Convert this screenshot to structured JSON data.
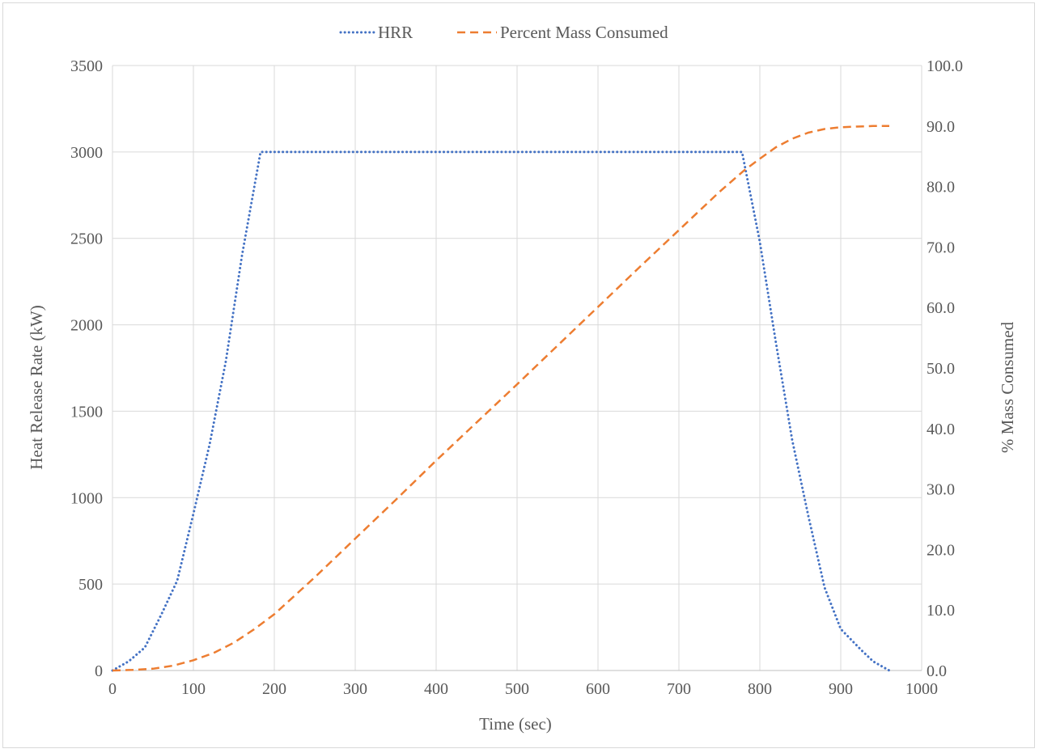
{
  "chart_data": {
    "type": "line",
    "title": "",
    "xlabel": "Time (sec)",
    "ylabel": "Heat Release Rate (kW)",
    "y2label": "% Mass Consumed",
    "xlim": [
      0,
      1000
    ],
    "ylim": [
      0,
      3500
    ],
    "y2lim": [
      0,
      100
    ],
    "x_ticks": [
      "0",
      "100",
      "200",
      "300",
      "400",
      "500",
      "600",
      "700",
      "800",
      "900",
      "1000"
    ],
    "y_ticks": [
      "0",
      "500",
      "1000",
      "1500",
      "2000",
      "2500",
      "3000",
      "3500"
    ],
    "y2_ticks": [
      "0.0",
      "10.0",
      "20.0",
      "30.0",
      "40.0",
      "50.0",
      "60.0",
      "70.0",
      "80.0",
      "90.0",
      "100.0"
    ],
    "grid": true,
    "legend_position": "top-center",
    "series": [
      {
        "name": "HRR",
        "axis": "left",
        "style": "dotted",
        "color": "#4472c4",
        "x": [
          0,
          20,
          40,
          60,
          80,
          100,
          120,
          140,
          160,
          183,
          200,
          300,
          400,
          500,
          600,
          700,
          778,
          800,
          820,
          840,
          860,
          880,
          900,
          925,
          940,
          960
        ],
        "y": [
          0,
          53,
          133,
          320,
          520,
          907,
          1307,
          1787,
          2400,
          3000,
          3000,
          3000,
          3000,
          3000,
          3000,
          3000,
          3000,
          2480,
          1893,
          1333,
          893,
          480,
          240,
          120,
          53,
          0
        ]
      },
      {
        "name": "Percent Mass Consumed",
        "axis": "right",
        "style": "dashed",
        "color": "#ed7d31",
        "x": [
          0,
          25,
          50,
          75,
          100,
          125,
          150,
          175,
          200,
          250,
          300,
          350,
          400,
          450,
          500,
          550,
          600,
          650,
          700,
          750,
          780,
          800,
          820,
          840,
          860,
          880,
          900,
          920,
          940,
          960
        ],
        "y": [
          0.0,
          0.1,
          0.3,
          0.8,
          1.7,
          2.9,
          4.6,
          6.8,
          9.3,
          15.4,
          21.8,
          28.2,
          34.7,
          41.0,
          47.3,
          53.7,
          60.1,
          66.5,
          72.8,
          79.1,
          82.6,
          84.6,
          86.5,
          87.9,
          88.9,
          89.5,
          89.8,
          89.9,
          90.0,
          90.0
        ]
      }
    ]
  }
}
